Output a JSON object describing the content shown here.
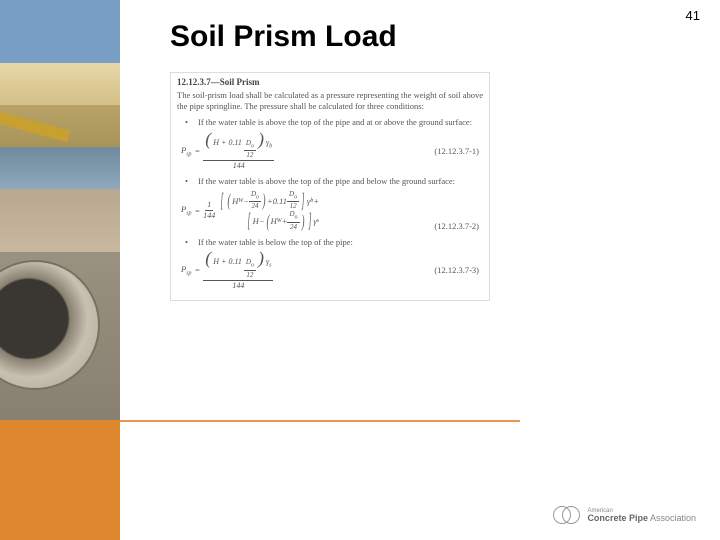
{
  "page_number": "41",
  "title": "Soil Prism Load",
  "section": {
    "heading": "12.12.3.7—Soil Prism",
    "intro": "The soil-prism load shall be calculated as a pressure representing the weight of soil above the pipe springline. The pressure shall be calculated for three conditions:",
    "bullets": [
      "If the water table is above the top of the pipe and at or above the ground surface:",
      "If the water table is above the top of the pipe and below the ground surface:",
      "If the water table is below the top of the pipe:"
    ],
    "equations": {
      "eq1": {
        "label": "(12.12.3.7-1)"
      },
      "eq2": {
        "label": "(12.12.3.7-2)"
      },
      "eq3": {
        "label": "(12.12.3.7-3)"
      }
    },
    "symbols": {
      "Psp": "P",
      "Psp_sub": "sp",
      "H": "H",
      "Hw": "H",
      "Hw_sub": "W",
      "Do": "D",
      "Do_sub": "o",
      "gamma_b": "γ",
      "gamma_b_sub": "b",
      "gamma_s": "γ",
      "gamma_s_sub": "s",
      "c011": "0.11",
      "c144": "144",
      "c12": "12",
      "c24": "24",
      "c1": "1",
      "plus": "+",
      "minus": "−",
      "eq": "="
    }
  },
  "logo": {
    "line1": "American",
    "line2a": "Concrete Pipe",
    "line2b": " Association"
  },
  "colors": {
    "orange": "#e08830",
    "title_color": "#000000",
    "text_color": "#555555"
  }
}
